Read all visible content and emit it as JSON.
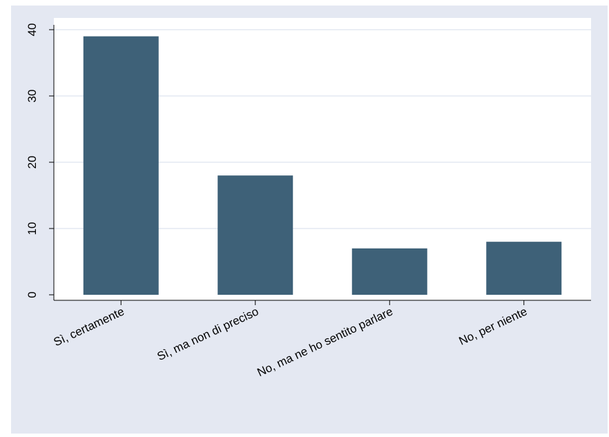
{
  "chart_data": {
    "type": "bar",
    "categories": [
      "Sì, certamente",
      "Sì, ma non di preciso",
      "No, ma ne ho sentito parlare",
      "No, per niente"
    ],
    "values": [
      39,
      18,
      7,
      8
    ],
    "title": "",
    "xlabel": "",
    "ylabel": "",
    "ylim": [
      0,
      40
    ],
    "yticks": [
      "0",
      "10",
      "20",
      "30",
      "40"
    ],
    "grid": true,
    "legend": "none",
    "colors": {
      "bar": "#3e6178",
      "background": "#e4e8f2",
      "plot_background": "#ffffff",
      "grid": "#e4e8f2",
      "axis": "#000000"
    }
  }
}
